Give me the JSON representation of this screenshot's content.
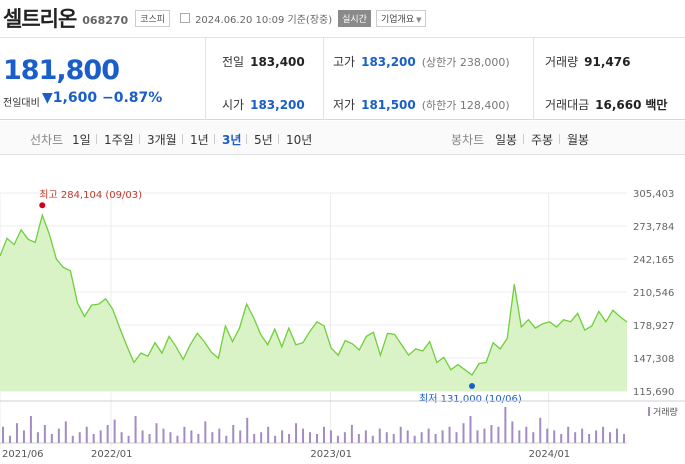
{
  "header": {
    "name": "셀트리온",
    "code": "068270",
    "market": "코스피",
    "datetime": "2024.06.20 10:09",
    "basis": "기준(장중)",
    "realtime": "실시간",
    "company_info": "기업개요"
  },
  "summary": {
    "price": "181,800",
    "diff_label": "전일대비",
    "diff_value": "1,600",
    "diff_pct": "−0.87%",
    "prev_label": "전일",
    "prev_value": "183,400",
    "high_label": "고가",
    "high_value": "183,200",
    "high_sub": "(상한가 238,000)",
    "volume_label": "거래량",
    "volume_value": "91,476",
    "open_label": "시가",
    "open_value": "183,200",
    "low_label": "저가",
    "low_value": "181,500",
    "low_sub": "(하한가 128,400)",
    "amount_label": "거래대금",
    "amount_value": "16,660",
    "amount_unit": "백만"
  },
  "tabs": {
    "line_chart": "선차트",
    "periods": [
      "1일",
      "1주일",
      "3개월",
      "1년",
      "3년",
      "5년",
      "10년"
    ],
    "active_period": "3년",
    "candle_chart": "봉차트",
    "candle_periods": [
      "일봉",
      "주봉",
      "월봉"
    ]
  },
  "colors": {
    "up": "#d0021b",
    "down": "#1a5ec9",
    "line": "#6fcf3a",
    "fill": "#d9f3c6",
    "volume": "#a38bc4"
  },
  "chart_data": {
    "type": "area",
    "y_ticks": [
      "305,403",
      "273,784",
      "242,165",
      "210,546",
      "178,927",
      "147,308",
      "115,690"
    ],
    "ylim": [
      115690,
      305403
    ],
    "x_ticks": [
      "2021/06",
      "2022/01",
      "2023/01",
      "2024/01"
    ],
    "x_tick_positions": [
      0,
      0.177,
      0.527,
      0.875
    ],
    "high_annotation": "최고 284,104 (09/03)",
    "low_annotation": "최저 131,000 (10/06)",
    "volume_label": "거래량",
    "series": [
      {
        "values": [
          245000,
          262000,
          256000,
          270000,
          261000,
          258000,
          284104,
          266000,
          242000,
          234000,
          231000,
          200000,
          187000,
          198000,
          199000,
          204000,
          194000,
          176000,
          159000,
          143000,
          152000,
          149000,
          162000,
          152000,
          168000,
          158000,
          146000,
          160000,
          171000,
          163000,
          153000,
          147000,
          178000,
          163000,
          176000,
          199000,
          186000,
          170000,
          160000,
          175000,
          158000,
          176000,
          160000,
          162000,
          173000,
          182000,
          178000,
          157000,
          150000,
          164000,
          161000,
          155000,
          168000,
          172000,
          150000,
          171000,
          170000,
          160000,
          150000,
          156000,
          154000,
          163000,
          143000,
          148000,
          136000,
          141000,
          136000,
          131000,
          142000,
          143000,
          162000,
          156000,
          166000,
          218000,
          177000,
          184000,
          176000,
          180000,
          182000,
          177000,
          184000,
          182000,
          190000,
          174000,
          178000,
          192000,
          182000,
          193000,
          187000,
          181800
        ]
      }
    ],
    "volume": [
      18,
      8,
      22,
      14,
      30,
      12,
      20,
      10,
      16,
      24,
      8,
      12,
      18,
      10,
      14,
      20,
      26,
      12,
      8,
      30,
      14,
      10,
      22,
      16,
      12,
      8,
      18,
      14,
      10,
      24,
      12,
      16,
      8,
      20,
      14,
      28,
      10,
      12,
      18,
      8,
      14,
      10,
      22,
      16,
      12,
      10,
      18,
      14,
      8,
      12,
      20,
      10,
      14,
      8,
      16,
      12,
      10,
      18,
      14,
      8,
      12,
      16,
      10,
      14,
      18,
      12,
      22,
      30,
      14,
      16,
      20,
      18,
      40,
      24,
      14,
      18,
      12,
      28,
      16,
      14,
      10,
      18,
      12,
      16,
      10,
      14,
      18,
      12,
      16,
      10
    ]
  }
}
